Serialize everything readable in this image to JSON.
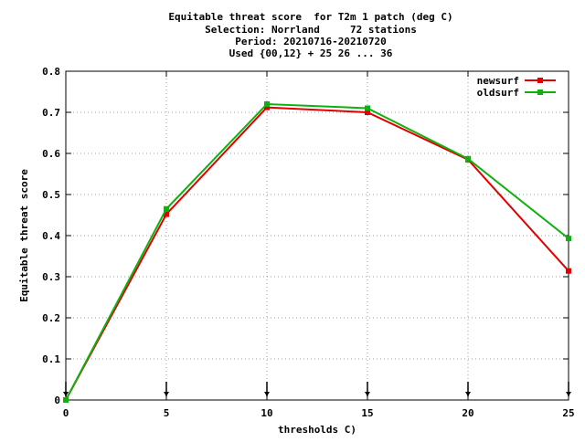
{
  "chart_data": {
    "type": "line",
    "title_lines": [
      "Equitable threat score  for T2m 1 patch (deg C)",
      "Selection: Norrland     72 stations",
      "Period: 20210716-20210720",
      "Used {00,12} + 25 26 ... 36"
    ],
    "xlabel": "thresholds C)",
    "ylabel": "Equitable threat score",
    "x": [
      0,
      5,
      10,
      15,
      20,
      25
    ],
    "xlim": [
      0,
      25
    ],
    "ylim": [
      0,
      0.8
    ],
    "xticks": [
      "0",
      "5",
      "10",
      "15",
      "20",
      "25"
    ],
    "yticks": [
      "0",
      "0.1",
      "0.2",
      "0.3",
      "0.4",
      "0.5",
      "0.6",
      "0.7",
      "0.8"
    ],
    "grid": true,
    "legend_position": "top-right",
    "series": [
      {
        "name": "newsurf",
        "color": "#e00000",
        "values": [
          0.0,
          0.452,
          0.712,
          0.7,
          0.585,
          0.314
        ]
      },
      {
        "name": "oldsurf",
        "color": "#11b011",
        "values": [
          0.0,
          0.465,
          0.72,
          0.71,
          0.587,
          0.393
        ]
      }
    ]
  }
}
